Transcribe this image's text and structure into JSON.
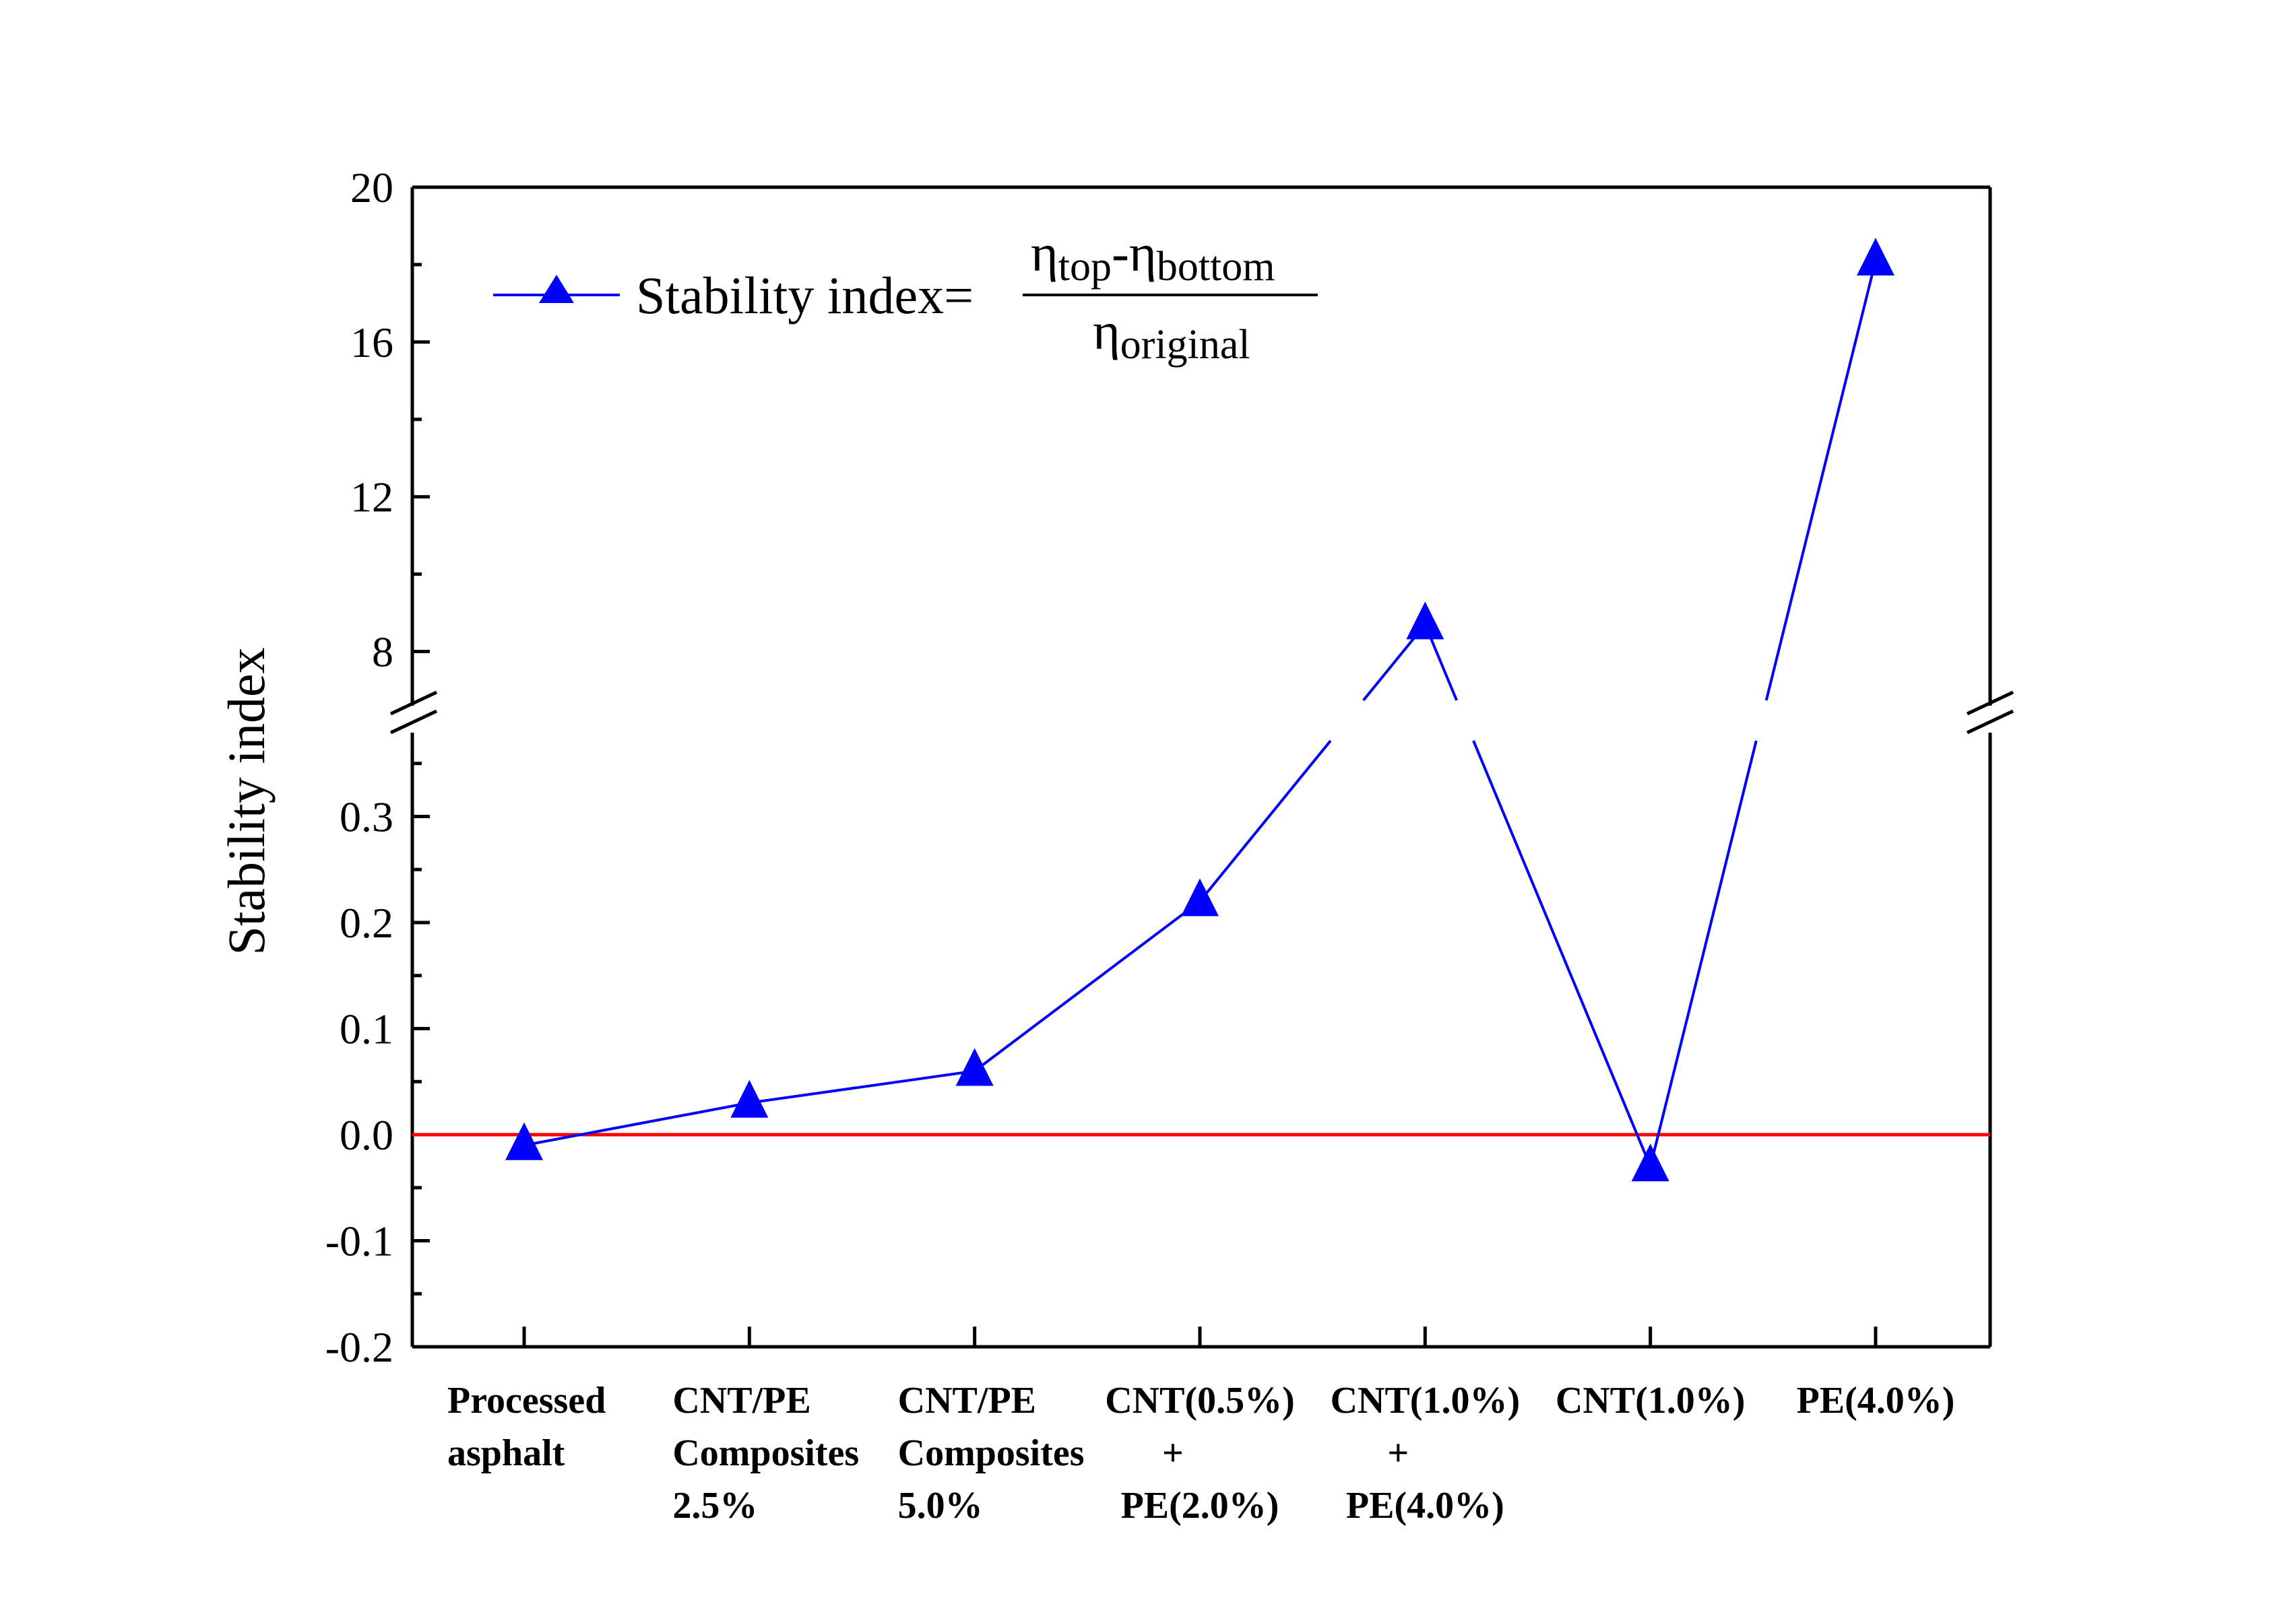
{
  "chart_data": {
    "type": "line",
    "title": "",
    "xlabel": "",
    "ylabel": "Stability index",
    "categories": [
      [
        "Processed",
        "asphalt"
      ],
      [
        "CNT/PE",
        "Composites",
        "2.5%"
      ],
      [
        "CNT/PE",
        "Composites",
        "5.0%"
      ],
      [
        "CNT(0.5%)",
        "+",
        "PE(2.0%)"
      ],
      [
        "CNT(1.0%)",
        "+",
        "PE(4.0%)"
      ],
      [
        "CNT(1.0%)"
      ],
      [
        "PE(4.0%)"
      ]
    ],
    "series": [
      {
        "name": "Stability index",
        "values": [
          -0.01,
          0.03,
          0.06,
          0.22,
          8.7,
          -0.03,
          18.1
        ],
        "color": "#0000ff",
        "marker": "triangle-up"
      }
    ],
    "y_axis_broken": true,
    "y_lower_range": [
      -0.2,
      0.38
    ],
    "y_lower_ticks": [
      "-0.2",
      "-0.1",
      "0.0",
      "0.1",
      "0.2",
      "0.3"
    ],
    "y_upper_range": [
      6.6,
      20
    ],
    "y_upper_ticks": [
      "8",
      "12",
      "16",
      "20"
    ],
    "reference_line": {
      "y": 0.0,
      "color": "#ff0000"
    },
    "legend": {
      "position": "top-left",
      "label": "Stability index=",
      "formula": {
        "eta": "η",
        "top": "top",
        "minus": "-",
        "bottom": "bottom",
        "original": "original"
      }
    }
  }
}
